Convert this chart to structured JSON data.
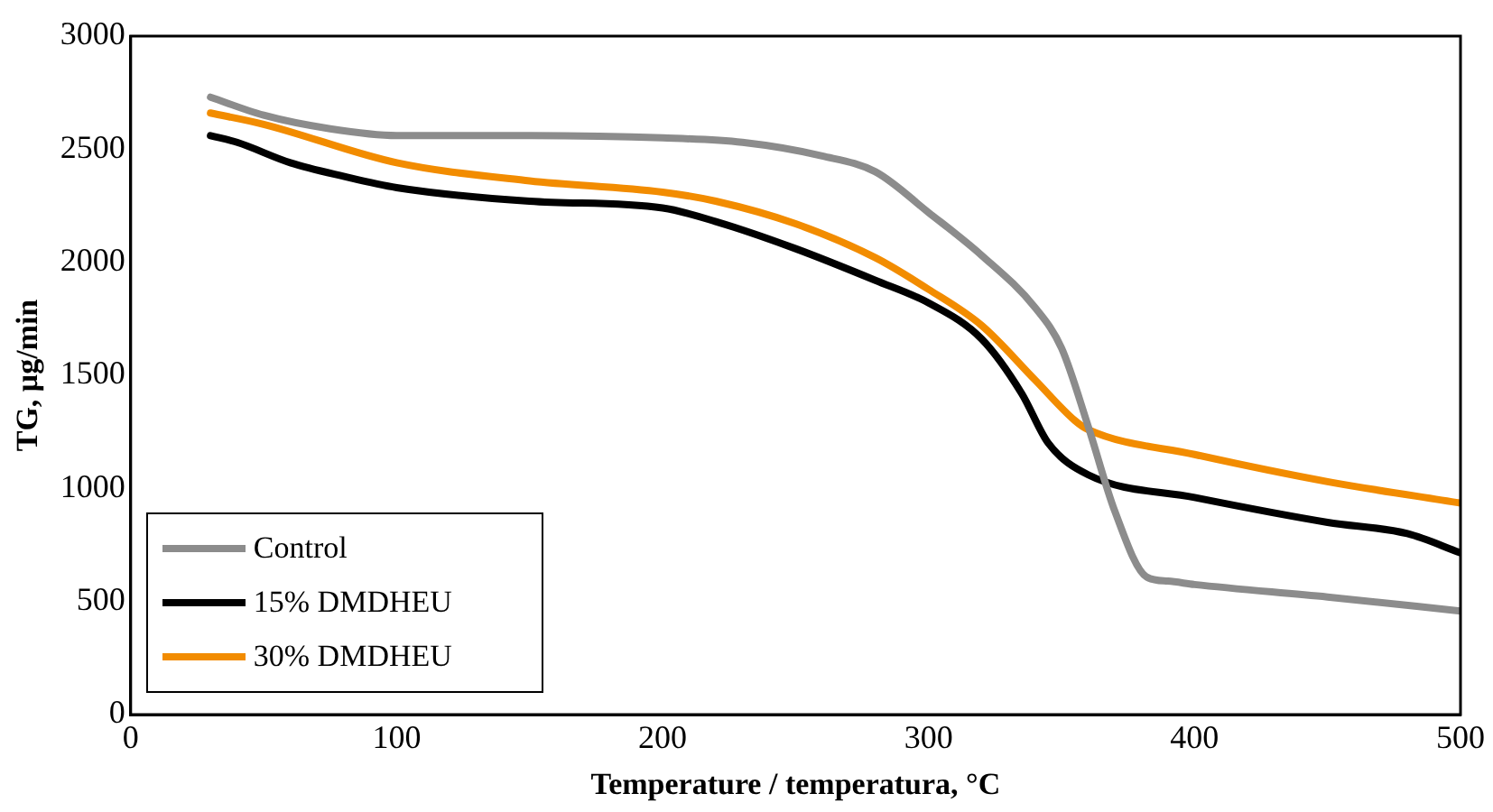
{
  "chart_data": {
    "type": "line",
    "xlabel": "Temperature / temperatura, °C",
    "ylabel": "TG, μg/min",
    "xlim": [
      0,
      500
    ],
    "xticks": [
      0,
      100,
      200,
      300,
      400,
      500
    ],
    "ylim": [
      0,
      3000
    ],
    "yticks": [
      0,
      500,
      1000,
      1500,
      2000,
      2500,
      3000
    ],
    "grid": false,
    "legend": "bottom left",
    "marker": "none",
    "line_style": "solid",
    "series": [
      {
        "name": "Control",
        "color": "#8c8c8c",
        "x": [
          30,
          50,
          75,
          100,
          150,
          200,
          230,
          260,
          280,
          300,
          320,
          340,
          350,
          360,
          370,
          382,
          390,
          400,
          450,
          500
        ],
        "values": [
          2730,
          2650,
          2590,
          2560,
          2560,
          2550,
          2530,
          2470,
          2400,
          2220,
          2030,
          1800,
          1620,
          1275,
          900,
          608,
          590,
          575,
          520,
          458
        ]
      },
      {
        "name": "15% DMDHEU",
        "color": "#000000",
        "x": [
          30,
          40,
          60,
          80,
          100,
          150,
          200,
          220,
          250,
          280,
          300,
          320,
          335,
          345,
          360,
          400,
          450,
          480,
          500
        ],
        "values": [
          2560,
          2530,
          2440,
          2380,
          2330,
          2270,
          2240,
          2180,
          2060,
          1920,
          1820,
          1660,
          1420,
          1200,
          1060,
          960,
          850,
          800,
          715
        ]
      },
      {
        "name": "30% DMDHEU",
        "color": "#f28c00",
        "x": [
          30,
          50,
          100,
          150,
          200,
          220,
          250,
          280,
          300,
          320,
          340,
          355,
          360,
          400,
          450,
          500
        ],
        "values": [
          2660,
          2610,
          2440,
          2360,
          2310,
          2270,
          2170,
          2020,
          1880,
          1720,
          1480,
          1300,
          1260,
          1150,
          1030,
          935
        ]
      }
    ]
  }
}
